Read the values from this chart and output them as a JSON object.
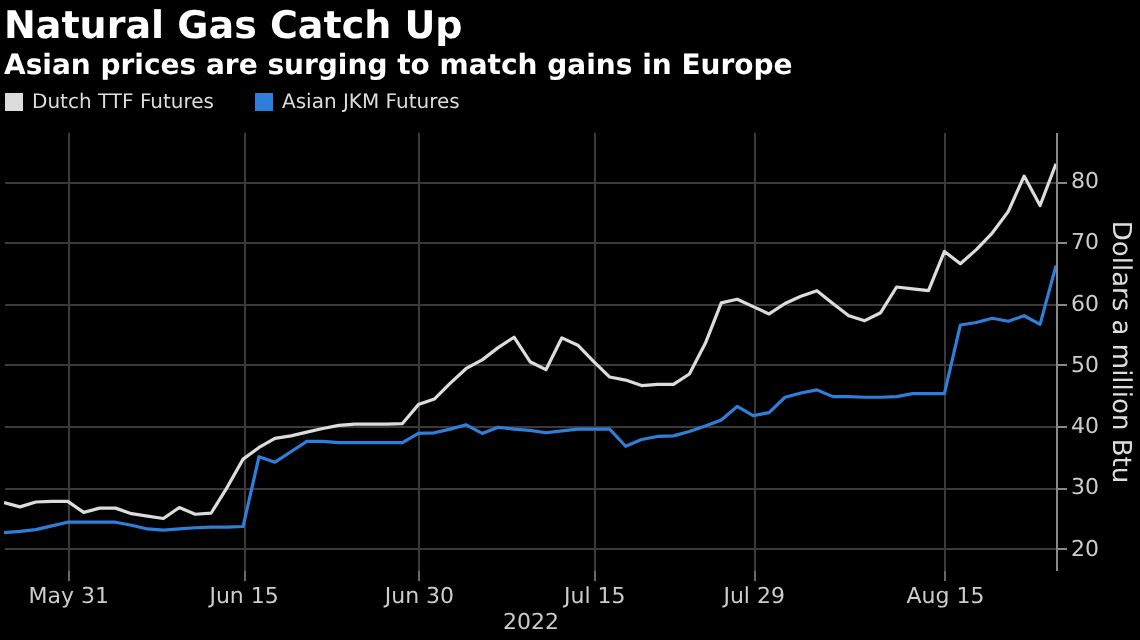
{
  "chart_data": {
    "type": "line",
    "title": "Natural Gas Catch Up",
    "subtitle": "Asian prices are surging to match gains in Europe",
    "xlabel": "2022",
    "ylabel": "Dollars a million Btu",
    "categories": [
      null,
      null,
      null,
      null,
      "May 31",
      null,
      null,
      null,
      null,
      null,
      null,
      null,
      null,
      null,
      null,
      "Jun 15",
      null,
      null,
      null,
      null,
      null,
      null,
      null,
      null,
      null,
      null,
      "Jun 30",
      null,
      null,
      null,
      null,
      null,
      null,
      null,
      null,
      null,
      null,
      "Jul 15",
      null,
      null,
      null,
      null,
      null,
      null,
      null,
      null,
      null,
      "Jul 29",
      null,
      null,
      null,
      null,
      null,
      null,
      null,
      null,
      null,
      null,
      null,
      "Aug 15",
      null,
      null,
      null,
      null,
      null,
      null,
      null
    ],
    "series": [
      {
        "name": "Dutch TTF Futures",
        "color": "#dcdcdc",
        "values": [
          27.5,
          26.8,
          27.6,
          27.7,
          27.7,
          25.9,
          26.6,
          26.6,
          25.7,
          25.3,
          24.9,
          26.7,
          25.6,
          25.8,
          30.0,
          34.6,
          36.5,
          38.0,
          38.4,
          39.0,
          39.6,
          40.1,
          40.3,
          40.3,
          40.3,
          40.4,
          43.5,
          44.4,
          47.0,
          49.4,
          50.8,
          52.8,
          54.5,
          50.5,
          49.2,
          54.4,
          53.2,
          50.5,
          48.0,
          47.5,
          46.6,
          46.8,
          46.8,
          48.5,
          53.5,
          60.1,
          60.7,
          59.5,
          58.3,
          60.0,
          61.2,
          62.1,
          60.0,
          58.0,
          57.2,
          58.5,
          62.7,
          62.4,
          62.1,
          68.5,
          66.5,
          68.8,
          71.5,
          75.0,
          80.8,
          76.0,
          82.8
        ]
      },
      {
        "name": "Asian JKM Futures",
        "color": "#2e7fd9",
        "values": [
          22.6,
          22.8,
          23.1,
          23.7,
          24.3,
          24.3,
          24.3,
          24.3,
          23.8,
          23.2,
          23.0,
          23.2,
          23.4,
          23.5,
          23.5,
          23.6,
          35.0,
          34.1,
          35.8,
          37.5,
          37.5,
          37.3,
          37.3,
          37.3,
          37.3,
          37.3,
          38.8,
          38.9,
          39.5,
          40.2,
          38.8,
          39.8,
          39.5,
          39.3,
          38.9,
          39.2,
          39.5,
          39.5,
          39.5,
          36.7,
          37.8,
          38.3,
          38.4,
          39.1,
          40.0,
          41.0,
          43.2,
          41.7,
          42.2,
          44.7,
          45.4,
          45.9,
          44.8,
          44.8,
          44.7,
          44.7,
          44.8,
          45.3,
          45.3,
          45.3,
          56.5,
          56.9,
          57.6,
          57.1,
          58.0,
          56.6,
          66.2
        ]
      }
    ],
    "ylim": [
      16.5,
      88
    ],
    "yticks": [
      20,
      30,
      40,
      50,
      60,
      70,
      80
    ],
    "grid": true,
    "legend": "top left",
    "marker": "none",
    "line_style": "solid"
  }
}
